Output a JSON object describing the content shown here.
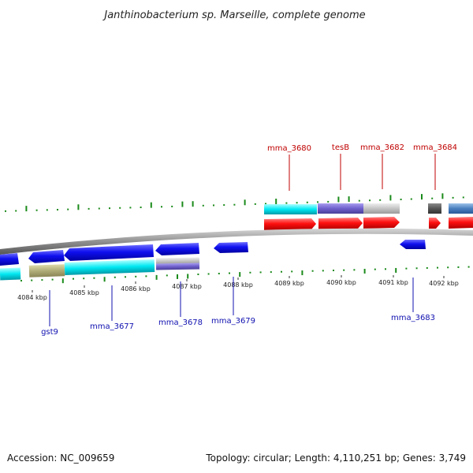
{
  "title": "Janthinobacterium sp. Marseille, complete genome",
  "footer": {
    "accession": "Accession: NC_009659",
    "genome_info": "Topology: circular; Length: 4,110,251 bp; Genes: 3,749"
  },
  "scale_ticks": [
    {
      "name": "tick-4084",
      "label": "4084 kbp"
    },
    {
      "name": "tick-4085",
      "label": "4085 kbp"
    },
    {
      "name": "tick-4086",
      "label": "4086 kbp"
    },
    {
      "name": "tick-4087",
      "label": "4087 kbp"
    },
    {
      "name": "tick-4088",
      "label": "4088 kbp"
    },
    {
      "name": "tick-4089",
      "label": "4089 kbp"
    },
    {
      "name": "tick-4090",
      "label": "4090 kbp"
    },
    {
      "name": "tick-4091",
      "label": "4091 kbp"
    },
    {
      "name": "tick-4092",
      "label": "4092 kbp"
    }
  ],
  "gene_labels_top": [
    {
      "name": "gene-label-mma-3680",
      "text": "mma_3680"
    },
    {
      "name": "gene-label-tesb",
      "text": "tesB"
    },
    {
      "name": "gene-label-mma-3682",
      "text": "mma_3682"
    },
    {
      "name": "gene-label-mma-3684",
      "text": "mma_3684"
    }
  ],
  "gene_labels_bottom": [
    {
      "name": "gene-label-gst9",
      "text": "gst9"
    },
    {
      "name": "gene-label-mma-3677",
      "text": "mma_3677"
    },
    {
      "name": "gene-label-mma-3678",
      "text": "mma_3678"
    },
    {
      "name": "gene-label-mma-3679",
      "text": "mma_3679"
    },
    {
      "name": "gene-label-mma-3683",
      "text": "mma_3683"
    }
  ],
  "colors": {
    "forward_cds": "#ff0000",
    "reverse_cds": "#0000ee",
    "cyan_feature": "#00e5f0",
    "purple_feature": "#7b6bd0",
    "gray_feature": "#c8c8c8",
    "olive_feature": "#b0ac78",
    "backbone": "#8a8a8a",
    "gc_ticks": "#1a8a1a",
    "top_label": "#c00000",
    "bottom_label": "#1010b0"
  }
}
